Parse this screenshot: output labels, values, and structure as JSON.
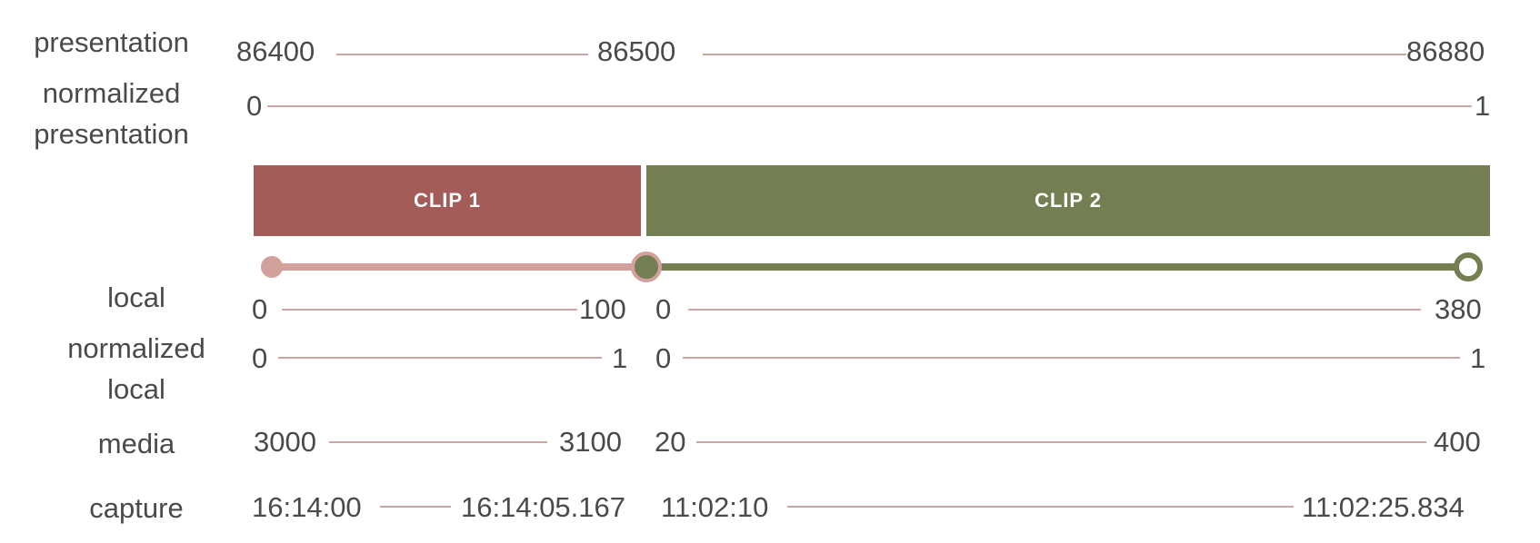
{
  "row_labels": {
    "presentation": "presentation",
    "normalized_presentation": [
      "normalized",
      "presentation"
    ],
    "local": "local",
    "normalized_local": [
      "normalized",
      "local"
    ],
    "media": "media",
    "capture": "capture"
  },
  "presentation": {
    "start": "86400",
    "mid": "86500",
    "end": "86880"
  },
  "normalized_presentation": {
    "start": "0",
    "end": "1"
  },
  "clips": [
    {
      "label": "CLIP 1",
      "color": "#a35c58",
      "local": {
        "start": "0",
        "end": "100"
      },
      "normalized_local": {
        "start": "0",
        "end": "1"
      },
      "media": {
        "start": "3000",
        "end": "3100"
      },
      "capture": {
        "start": "16:14:00",
        "end": "16:14:05.167"
      }
    },
    {
      "label": "CLIP 2",
      "color": "#737f53",
      "local": {
        "start": "0",
        "end": "380"
      },
      "normalized_local": {
        "start": "0",
        "end": "1"
      },
      "media": {
        "start": "20",
        "end": "400"
      },
      "capture": {
        "start": "11:02:10",
        "end": "11:02:25.834"
      }
    }
  ],
  "colors": {
    "clip1_track": "#d3a19c",
    "clip2_track": "#737f53",
    "axis_line": "#c9a6a2",
    "text": "#4a4a4a"
  }
}
